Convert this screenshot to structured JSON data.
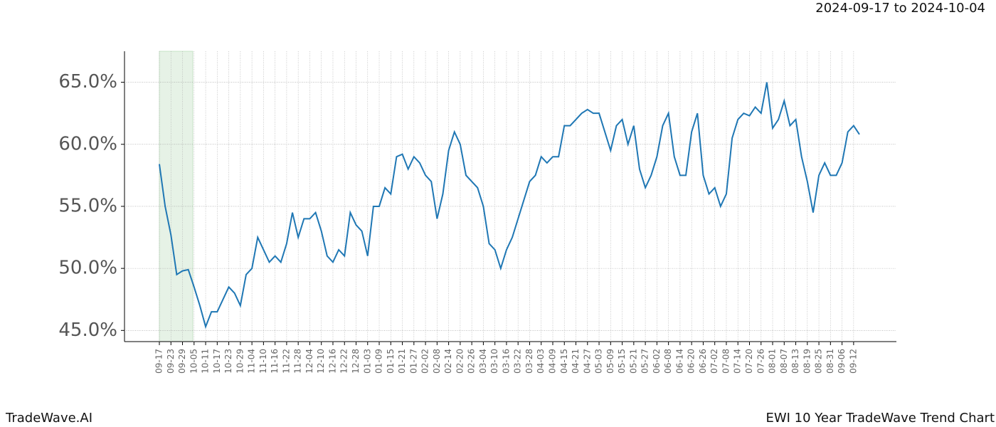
{
  "chart_data": {
    "type": "line",
    "title": "2024-09-17 to 2024-10-04",
    "footer_left": "TradeWave.AI",
    "footer_right": "EWI 10 Year TradeWave Trend Chart",
    "categories": [
      "09-17",
      null,
      "09-23",
      null,
      "09-29",
      null,
      "10-05",
      null,
      "10-11",
      null,
      "10-17",
      null,
      "10-23",
      null,
      "10-29",
      null,
      "11-04",
      null,
      "11-10",
      null,
      "11-16",
      null,
      "11-22",
      null,
      "11-28",
      null,
      "12-04",
      null,
      "12-10",
      null,
      "12-16",
      null,
      "12-22",
      null,
      "12-28",
      null,
      "01-03",
      null,
      "01-09",
      null,
      "01-15",
      null,
      "01-21",
      null,
      "01-27",
      null,
      "02-02",
      null,
      "02-08",
      null,
      "02-14",
      null,
      "02-20",
      null,
      "02-26",
      null,
      "03-04",
      null,
      "03-10",
      null,
      "03-16",
      null,
      "03-22",
      null,
      "03-28",
      null,
      "04-03",
      null,
      "04-09",
      null,
      "04-15",
      null,
      "04-21",
      null,
      "04-27",
      null,
      "05-03",
      null,
      "05-09",
      null,
      "05-15",
      null,
      "05-21",
      null,
      "05-27",
      null,
      "06-02",
      null,
      "06-08",
      null,
      "06-14",
      null,
      "06-20",
      null,
      "06-26",
      null,
      "07-02",
      null,
      "07-08",
      null,
      "07-14",
      null,
      "07-20",
      null,
      "07-26",
      null,
      "08-01",
      null,
      "08-07",
      null,
      "08-13",
      null,
      "08-19",
      null,
      "08-25",
      null,
      "08-31",
      null,
      "09-06",
      null,
      "09-12",
      null
    ],
    "series": [
      {
        "color": "#1f77b4",
        "values": [
          58.4,
          55.0,
          52.7,
          49.5,
          49.8,
          49.9,
          48.5,
          47.0,
          45.3,
          46.5,
          46.5,
          47.5,
          48.5,
          48.0,
          47.0,
          49.5,
          50.0,
          52.5,
          51.5,
          50.5,
          51.0,
          50.5,
          52.0,
          54.5,
          52.5,
          54.0,
          54.0,
          54.5,
          53.0,
          51.0,
          50.5,
          51.5,
          51.0,
          54.5,
          53.5,
          53.0,
          51.0,
          55.0,
          55.0,
          56.5,
          56.0,
          59.0,
          59.2,
          58.0,
          59.0,
          58.5,
          57.5,
          57.0,
          54.0,
          56.0,
          59.5,
          61.0,
          60.0,
          57.5,
          57.0,
          56.5,
          55.0,
          52.0,
          51.5,
          50.0,
          51.5,
          52.5,
          54.0,
          55.5,
          57.0,
          57.5,
          59.0,
          58.5,
          59.0,
          59.0,
          61.5,
          61.5,
          62.0,
          62.5,
          62.8,
          62.5,
          62.5,
          61.0,
          59.5,
          61.5,
          62.0,
          60.0,
          61.5,
          58.0,
          56.5,
          57.5,
          59.0,
          61.5,
          62.5,
          59.0,
          57.5,
          57.5,
          61.0,
          62.5,
          57.5,
          56.0,
          56.5,
          55.0,
          56.0,
          60.5,
          62.0,
          62.5,
          62.3,
          63.0,
          62.5,
          65.0,
          61.3,
          62.0,
          63.5,
          61.5,
          62.0,
          59.0,
          57.0,
          54.5,
          57.5,
          58.5,
          57.5,
          57.5,
          58.5,
          61.0,
          61.5,
          60.8
        ]
      }
    ],
    "ylim": [
      44.1,
      67.5
    ],
    "yticks": [
      {
        "value": 45,
        "label": "45.0%"
      },
      {
        "value": 50,
        "label": "50.0%"
      },
      {
        "value": 55,
        "label": "55.0%"
      },
      {
        "value": 60,
        "label": "60.0%"
      },
      {
        "value": 65,
        "label": "65.0%"
      }
    ],
    "grid": true
  }
}
